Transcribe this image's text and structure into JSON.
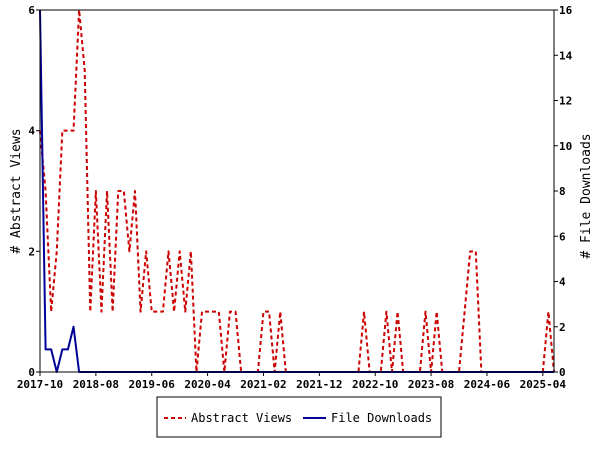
{
  "chart_data": {
    "type": "line",
    "x_tick_labels": [
      "2017-10",
      "2018-08",
      "2019-06",
      "2020-04",
      "2021-02",
      "2021-12",
      "2022-10",
      "2023-08",
      "2024-06",
      "2025-04"
    ],
    "y_left": {
      "label": "# Abstract Views",
      "ticks": [
        "0",
        "2",
        "4",
        "6"
      ],
      "range": [
        0,
        6
      ]
    },
    "y_right": {
      "label": "# File Downloads",
      "ticks": [
        "0",
        "2",
        "4",
        "6",
        "8",
        "10",
        "12",
        "14",
        "16"
      ],
      "range": [
        0,
        16
      ]
    },
    "x_range": [
      "2017-10",
      "2025-06"
    ],
    "legend_position": "bottom",
    "grid": false,
    "series": [
      {
        "name": "Abstract Views",
        "axis": "left",
        "color": "#cc0000",
        "style": "dashed",
        "points": [
          [
            "2017-10",
            4
          ],
          [
            "2017-11",
            3
          ],
          [
            "2017-12",
            1
          ],
          [
            "2018-01",
            2
          ],
          [
            "2018-02",
            4
          ],
          [
            "2018-03",
            4
          ],
          [
            "2018-04",
            4
          ],
          [
            "2018-05",
            6
          ],
          [
            "2018-06",
            5
          ],
          [
            "2018-07",
            1
          ],
          [
            "2018-08",
            3
          ],
          [
            "2018-09",
            1
          ],
          [
            "2018-10",
            3
          ],
          [
            "2018-11",
            1
          ],
          [
            "2018-12",
            3
          ],
          [
            "2019-01",
            3
          ],
          [
            "2019-02",
            2
          ],
          [
            "2019-03",
            3
          ],
          [
            "2019-04",
            1
          ],
          [
            "2019-05",
            2
          ],
          [
            "2019-06",
            1
          ],
          [
            "2019-07",
            1
          ],
          [
            "2019-08",
            1
          ],
          [
            "2019-09",
            2
          ],
          [
            "2019-10",
            1
          ],
          [
            "2019-11",
            2
          ],
          [
            "2019-12",
            1
          ],
          [
            "2020-01",
            2
          ],
          [
            "2020-02",
            0
          ],
          [
            "2020-03",
            1
          ],
          [
            "2020-04",
            1
          ],
          [
            "2020-05",
            1
          ],
          [
            "2020-06",
            1
          ],
          [
            "2020-07",
            0
          ],
          [
            "2020-08",
            1
          ],
          [
            "2020-09",
            1
          ],
          [
            "2020-10",
            0
          ],
          [
            "2020-11",
            0
          ],
          [
            "2020-12",
            0
          ],
          [
            "2021-01",
            0
          ],
          [
            "2021-02",
            1
          ],
          [
            "2021-03",
            1
          ],
          [
            "2021-04",
            0
          ],
          [
            "2021-05",
            1
          ],
          [
            "2021-06",
            0
          ],
          [
            "2021-07",
            0
          ],
          [
            "2021-08",
            0
          ],
          [
            "2021-09",
            0
          ],
          [
            "2021-10",
            0
          ],
          [
            "2021-11",
            0
          ],
          [
            "2021-12",
            0
          ],
          [
            "2022-01",
            0
          ],
          [
            "2022-02",
            0
          ],
          [
            "2022-03",
            0
          ],
          [
            "2022-04",
            0
          ],
          [
            "2022-05",
            0
          ],
          [
            "2022-06",
            0
          ],
          [
            "2022-07",
            0
          ],
          [
            "2022-08",
            1
          ],
          [
            "2022-09",
            0
          ],
          [
            "2022-10",
            0
          ],
          [
            "2022-11",
            0
          ],
          [
            "2022-12",
            1
          ],
          [
            "2023-01",
            0
          ],
          [
            "2023-02",
            1
          ],
          [
            "2023-03",
            0
          ],
          [
            "2023-04",
            0
          ],
          [
            "2023-05",
            0
          ],
          [
            "2023-06",
            0
          ],
          [
            "2023-07",
            1
          ],
          [
            "2023-08",
            0
          ],
          [
            "2023-09",
            1
          ],
          [
            "2023-10",
            0
          ],
          [
            "2023-11",
            0
          ],
          [
            "2023-12",
            0
          ],
          [
            "2024-01",
            0
          ],
          [
            "2024-02",
            1
          ],
          [
            "2024-03",
            2
          ],
          [
            "2024-04",
            2
          ],
          [
            "2024-05",
            0
          ],
          [
            "2024-06",
            0
          ],
          [
            "2024-07",
            0
          ],
          [
            "2024-08",
            0
          ],
          [
            "2024-09",
            0
          ],
          [
            "2024-10",
            0
          ],
          [
            "2024-11",
            0
          ],
          [
            "2024-12",
            0
          ],
          [
            "2025-01",
            0
          ],
          [
            "2025-02",
            0
          ],
          [
            "2025-03",
            0
          ],
          [
            "2025-04",
            0
          ],
          [
            "2025-05",
            1
          ],
          [
            "2025-06",
            0
          ]
        ]
      },
      {
        "name": "File Downloads",
        "axis": "right",
        "color": "#000099",
        "style": "solid",
        "points": [
          [
            "2017-10",
            16
          ],
          [
            "2017-11",
            1
          ],
          [
            "2017-12",
            1
          ],
          [
            "2018-01",
            0
          ],
          [
            "2018-02",
            1
          ],
          [
            "2018-03",
            1
          ],
          [
            "2018-04",
            2
          ],
          [
            "2018-05",
            0
          ],
          [
            "2018-06",
            0
          ],
          [
            "2018-07",
            0
          ],
          [
            "2018-08",
            0
          ],
          [
            "2018-09",
            0
          ],
          [
            "2018-10",
            0
          ],
          [
            "2018-11",
            0
          ],
          [
            "2018-12",
            0
          ],
          [
            "2019-01",
            0
          ],
          [
            "2019-02",
            0
          ],
          [
            "2019-03",
            0
          ],
          [
            "2019-04",
            0
          ],
          [
            "2019-05",
            0
          ],
          [
            "2019-06",
            0
          ],
          [
            "2019-07",
            0
          ],
          [
            "2019-08",
            0
          ],
          [
            "2019-09",
            0
          ],
          [
            "2019-10",
            0
          ],
          [
            "2019-11",
            0
          ],
          [
            "2019-12",
            0
          ],
          [
            "2020-01",
            0
          ],
          [
            "2020-02",
            0
          ],
          [
            "2020-03",
            0
          ],
          [
            "2020-04",
            0
          ],
          [
            "2020-05",
            0
          ],
          [
            "2020-06",
            0
          ],
          [
            "2020-07",
            0
          ],
          [
            "2020-08",
            0
          ],
          [
            "2020-09",
            0
          ],
          [
            "2020-10",
            0
          ],
          [
            "2020-11",
            0
          ],
          [
            "2020-12",
            0
          ],
          [
            "2021-01",
            0
          ],
          [
            "2021-02",
            0
          ],
          [
            "2021-03",
            0
          ],
          [
            "2021-04",
            0
          ],
          [
            "2021-05",
            0
          ],
          [
            "2021-06",
            0
          ],
          [
            "2021-07",
            0
          ],
          [
            "2021-08",
            0
          ],
          [
            "2021-09",
            0
          ],
          [
            "2021-10",
            0
          ],
          [
            "2021-11",
            0
          ],
          [
            "2021-12",
            0
          ],
          [
            "2022-01",
            0
          ],
          [
            "2022-02",
            0
          ],
          [
            "2022-03",
            0
          ],
          [
            "2022-04",
            0
          ],
          [
            "2022-05",
            0
          ],
          [
            "2022-06",
            0
          ],
          [
            "2022-07",
            0
          ],
          [
            "2022-08",
            0
          ],
          [
            "2022-09",
            0
          ],
          [
            "2022-10",
            0
          ],
          [
            "2022-11",
            0
          ],
          [
            "2022-12",
            0
          ],
          [
            "2023-01",
            0
          ],
          [
            "2023-02",
            0
          ],
          [
            "2023-03",
            0
          ],
          [
            "2023-04",
            0
          ],
          [
            "2023-05",
            0
          ],
          [
            "2023-06",
            0
          ],
          [
            "2023-07",
            0
          ],
          [
            "2023-08",
            0
          ],
          [
            "2023-09",
            0
          ],
          [
            "2023-10",
            0
          ],
          [
            "2023-11",
            0
          ],
          [
            "2023-12",
            0
          ],
          [
            "2024-01",
            0
          ],
          [
            "2024-02",
            0
          ],
          [
            "2024-03",
            0
          ],
          [
            "2024-04",
            0
          ],
          [
            "2024-05",
            0
          ],
          [
            "2024-06",
            0
          ],
          [
            "2024-07",
            0
          ],
          [
            "2024-08",
            0
          ],
          [
            "2024-09",
            0
          ],
          [
            "2024-10",
            0
          ],
          [
            "2024-11",
            0
          ],
          [
            "2024-12",
            0
          ],
          [
            "2025-01",
            0
          ],
          [
            "2025-02",
            0
          ],
          [
            "2025-03",
            0
          ],
          [
            "2025-04",
            0
          ],
          [
            "2025-05",
            0
          ],
          [
            "2025-06",
            0
          ]
        ]
      }
    ]
  }
}
